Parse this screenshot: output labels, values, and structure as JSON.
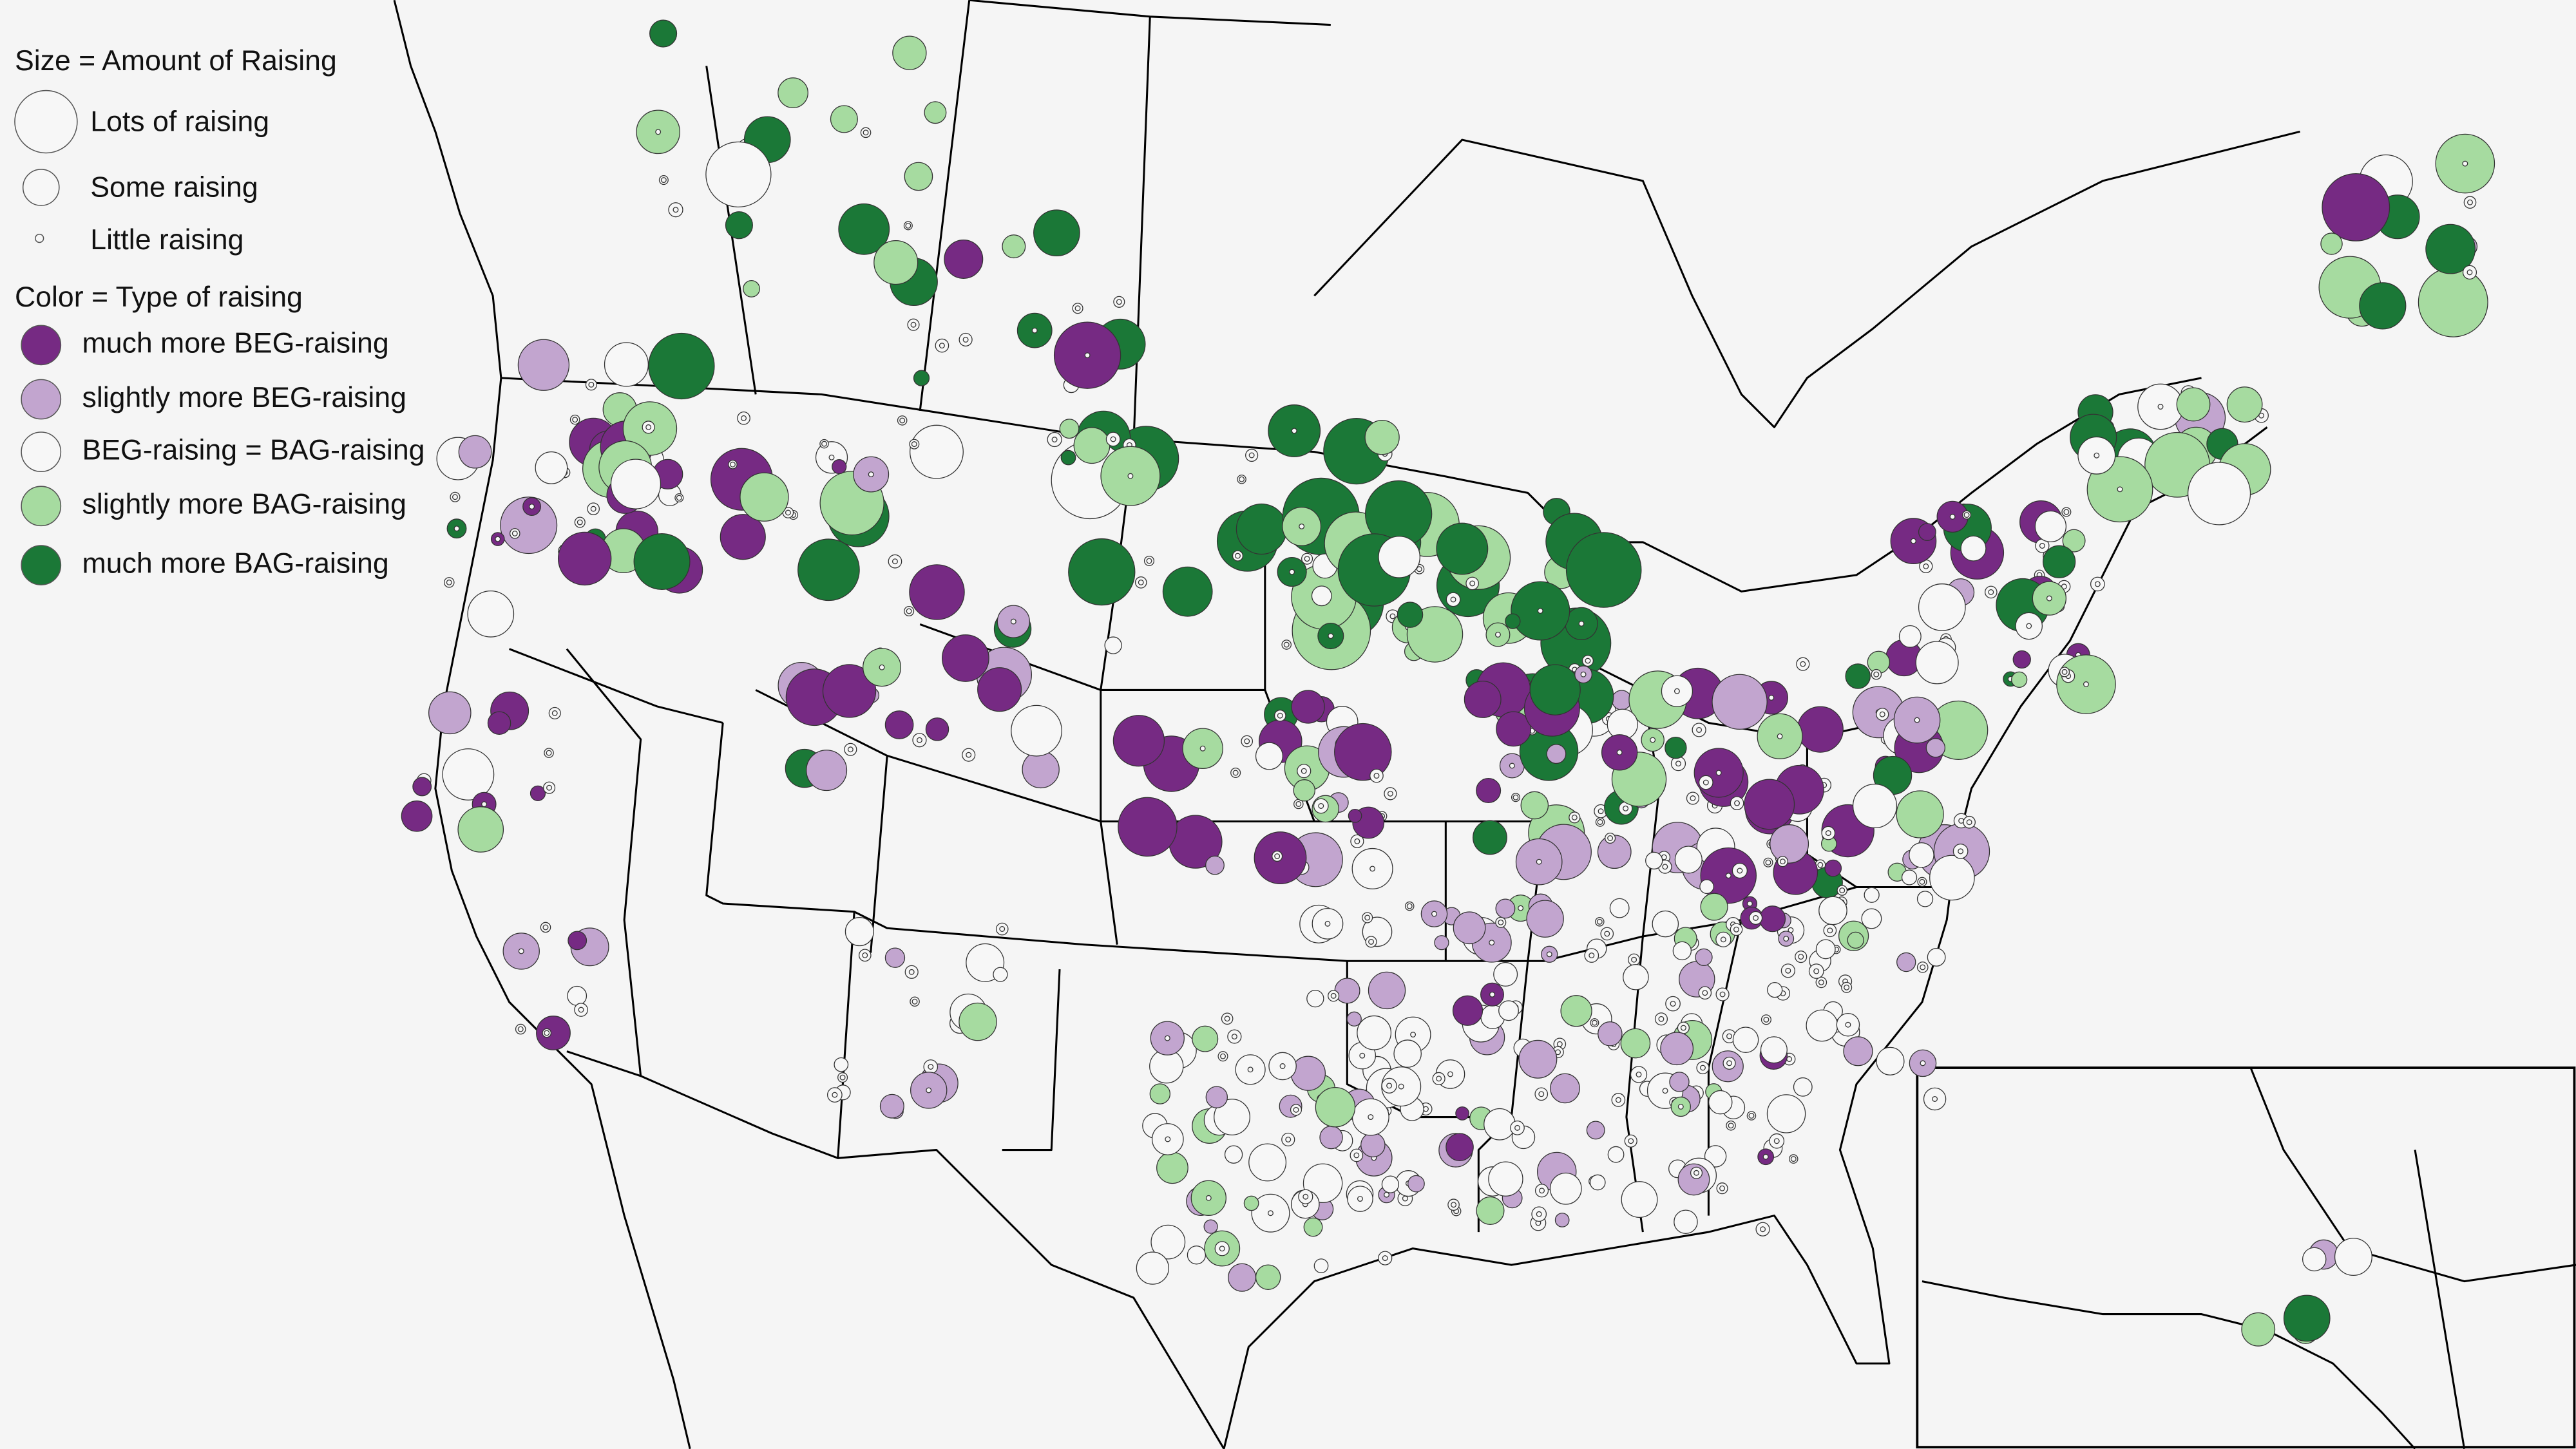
{
  "legend": {
    "size_title": "Size = Amount of Raising",
    "sizes": [
      {
        "label": "Lots of raising"
      },
      {
        "label": "Some raising"
      },
      {
        "label": "Little raising"
      }
    ],
    "color_title": "Color = Type of raising",
    "colors": [
      {
        "label": "much more BEG-raising",
        "color": "#762a83"
      },
      {
        "label": "slightly more BEG-raising",
        "color": "#c2a5cf"
      },
      {
        "label": "BEG-raising = BAG-raising",
        "color": "#f7f7f7"
      },
      {
        "label": "slightly more BAG-raising",
        "color": "#a6dba0"
      },
      {
        "label": "much more BAG-raising",
        "color": "#1b7837"
      }
    ]
  }
}
